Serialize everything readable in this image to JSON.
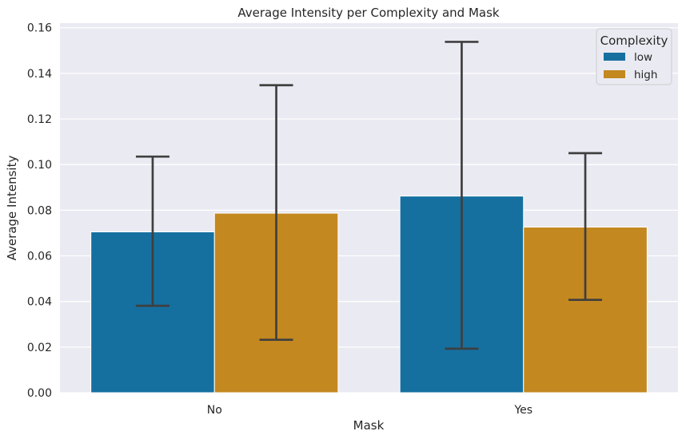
{
  "chart_data": {
    "type": "bar",
    "title": "Average Intensity per Complexity and Mask",
    "xlabel": "Mask",
    "ylabel": "Average Intensity",
    "categories": [
      "No",
      "Yes"
    ],
    "ylim": [
      0,
      0.162
    ],
    "yticks": [
      "0.00",
      "0.02",
      "0.04",
      "0.06",
      "0.08",
      "0.10",
      "0.12",
      "0.14",
      "0.16"
    ],
    "grid": true,
    "legend": {
      "title": "Complexity",
      "placement": "top-right"
    },
    "series": [
      {
        "name": "low",
        "color": "#1570a0",
        "values": [
          0.0705,
          0.0862
        ],
        "error_low": [
          0.0381,
          0.0193
        ],
        "error_high": [
          0.1035,
          0.1538
        ]
      },
      {
        "name": "high",
        "color": "#c38820",
        "values": [
          0.0787,
          0.0726
        ],
        "error_low": [
          0.0232,
          0.0407
        ],
        "error_high": [
          0.1348,
          0.105
        ]
      }
    ]
  }
}
